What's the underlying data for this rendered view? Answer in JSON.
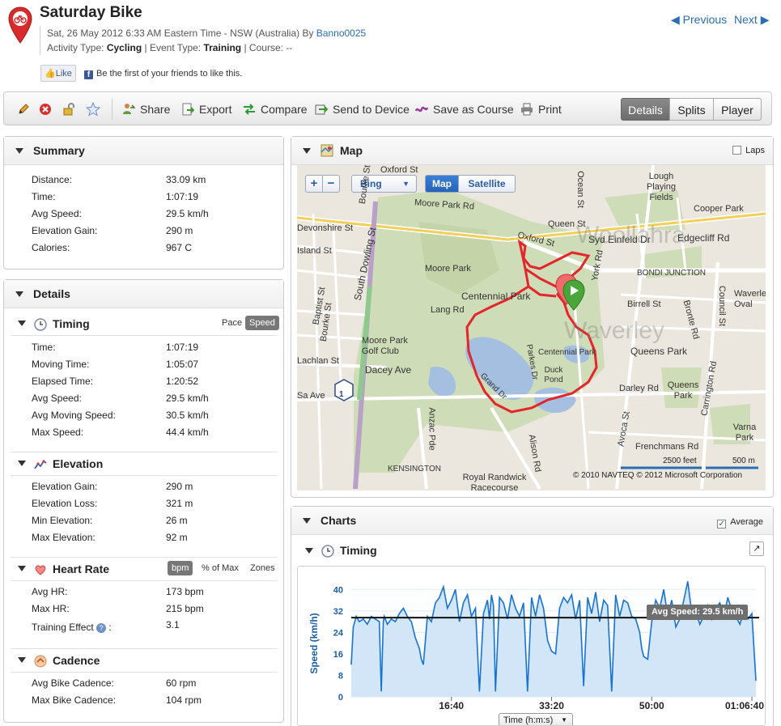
{
  "header": {
    "title": "Saturday Bike",
    "date_line_prefix": "Sat, 26 May 2012 6:33 AM Eastern Time - NSW (Australia) By ",
    "user": "Banno0025",
    "activity_type_label": "Activity Type:",
    "activity_type": "Cycling",
    "event_type_label": "| Event Type:",
    "event_type": "Training",
    "course_label": "| Course:",
    "course": "--",
    "previous": "Previous",
    "next": "Next",
    "like_label": "Like",
    "like_text": "Be the first of your friends to like this."
  },
  "toolbar": {
    "share": "Share",
    "export": "Export",
    "compare": "Compare",
    "send": "Send to Device",
    "save_course": "Save as Course",
    "print": "Print",
    "view_tabs": [
      "Details",
      "Splits",
      "Player"
    ],
    "active_tab": "Details"
  },
  "summary": {
    "title": "Summary",
    "rows": [
      {
        "label": "Distance:",
        "value": "33.09 km"
      },
      {
        "label": "Time:",
        "value": "1:07:19"
      },
      {
        "label": "Avg Speed:",
        "value": "29.5 km/h"
      },
      {
        "label": "Elevation Gain:",
        "value": "290 m"
      },
      {
        "label": "Calories:",
        "value": "967 C"
      }
    ]
  },
  "details": {
    "title": "Details",
    "timing": {
      "title": "Timing",
      "pace": "Pace",
      "speed": "Speed",
      "rows": [
        {
          "label": "Time:",
          "value": "1:07:19"
        },
        {
          "label": "Moving Time:",
          "value": "1:05:07"
        },
        {
          "label": "Elapsed Time:",
          "value": "1:20:52"
        },
        {
          "label": "Avg Speed:",
          "value": "29.5 km/h"
        },
        {
          "label": "Avg Moving Speed:",
          "value": "30.5 km/h"
        },
        {
          "label": "Max Speed:",
          "value": "44.4 km/h"
        }
      ]
    },
    "elevation": {
      "title": "Elevation",
      "rows": [
        {
          "label": "Elevation Gain:",
          "value": "290 m"
        },
        {
          "label": "Elevation Loss:",
          "value": "321 m"
        },
        {
          "label": "Min Elevation:",
          "value": "26 m"
        },
        {
          "label": "Max Elevation:",
          "value": "92 m"
        }
      ]
    },
    "heart_rate": {
      "title": "Heart Rate",
      "bpm": "bpm",
      "pct_max": "% of Max",
      "zones": "Zones",
      "rows": [
        {
          "label": "Avg HR:",
          "value": "173 bpm"
        },
        {
          "label": "Max HR:",
          "value": "215 bpm"
        },
        {
          "label": "Training Effect",
          "value": "3.1"
        }
      ],
      "colon": ":"
    },
    "cadence": {
      "title": "Cadence",
      "rows": [
        {
          "label": "Avg Bike Cadence:",
          "value": "60 rpm"
        },
        {
          "label": "Max Bike Cadence:",
          "value": "104 rpm"
        }
      ]
    }
  },
  "map": {
    "title": "Map",
    "laps": "Laps",
    "zoom_in": "+",
    "zoom_out": "−",
    "provider": "Bing",
    "map_btn": "Map",
    "satellite_btn": "Satellite",
    "scale_ft": "2500 feet",
    "scale_m": "500 m",
    "copyright": "© 2010 NAVTEQ   © 2012 Microsoft Corporation",
    "route_marker": "1",
    "labels": [
      "Moore Park Rd",
      "Queen St",
      "Oxford St",
      "Syd Einfeld Dr",
      "Edgecliff Rd",
      "Cooper Park",
      "Lough Playing Fields",
      "Ocean St",
      "Moore Park",
      "Centennial Park",
      "BONDI JUNCTION",
      "Waverley Oval",
      "Lang Rd",
      "Birrell St",
      "Bronte Rd",
      "Council St",
      "Moore Park Golf Club",
      "Dacey Ave",
      "Centennial Park",
      "Queens Park",
      "Duck Pond",
      "Parkes Dr",
      "Grand Dr",
      "Darley Rd",
      "Queens Park",
      "Carrington Rd",
      "Lachlan St",
      "Anzac Pde",
      "Avoca St",
      "Varna Park",
      "Frenchmans Rd",
      "KENSINGTON",
      "Alison Rd",
      "Royal Randwick Racecourse",
      "South Dowling St",
      "Baptist St",
      "Bourke St",
      "Devonshire St",
      "Island St",
      "York Rd",
      "Woollahra",
      "Waverley",
      "Oxford St",
      "Bourke St",
      "Sa Ave"
    ]
  },
  "charts": {
    "title": "Charts",
    "average": "Average",
    "timing_title": "Timing",
    "y_label": "Speed (km/h)",
    "x_selector": "Time (h:m:s)",
    "avg_tooltip": "Avg Speed: 29.5 km/h"
  },
  "chart_data": {
    "type": "area",
    "title": "Timing",
    "ylabel": "Speed (km/h)",
    "xlabel": "Time (h:m:s)",
    "ylim": [
      0,
      44
    ],
    "y_ticks": [
      0,
      8,
      16,
      24,
      32,
      40
    ],
    "x_ticks": [
      "16:40",
      "33:20",
      "50:00",
      "01:06:40"
    ],
    "x_tick_seconds": [
      1000,
      2000,
      3000,
      4000
    ],
    "xlim_seconds": [
      0,
      4040
    ],
    "average": 29.5,
    "series": [
      {
        "name": "Speed",
        "x_seconds": [
          0,
          20,
          50,
          80,
          120,
          160,
          200,
          240,
          280,
          300,
          320,
          330,
          340,
          360,
          400,
          440,
          480,
          520,
          560,
          600,
          640,
          680,
          700,
          720,
          760,
          800,
          840,
          880,
          920,
          960,
          1000,
          1040,
          1080,
          1120,
          1160,
          1200,
          1240,
          1280,
          1320,
          1360,
          1380,
          1400,
          1420,
          1440,
          1480,
          1520,
          1560,
          1600,
          1640,
          1680,
          1720,
          1760,
          1800,
          1840,
          1880,
          1920,
          1960,
          2000,
          2040,
          2080,
          2120,
          2160,
          2200,
          2240,
          2280,
          2320,
          2360,
          2400,
          2440,
          2480,
          2520,
          2560,
          2600,
          2640,
          2680,
          2720,
          2760,
          2800,
          2840,
          2880,
          2900,
          2920,
          2960,
          3000,
          3040,
          3080,
          3120,
          3160,
          3200,
          3240,
          3280,
          3320,
          3360,
          3400,
          3440,
          3480,
          3520,
          3560,
          3600,
          3640,
          3680,
          3720,
          3760,
          3800,
          3840,
          3880,
          3920,
          3960,
          4000,
          4040
        ],
        "values": [
          12,
          26,
          30,
          28,
          29,
          27,
          30,
          29,
          28,
          2,
          28,
          30,
          29,
          27,
          29,
          28,
          31,
          33,
          30,
          28,
          22,
          18,
          14,
          12,
          30,
          28,
          35,
          37,
          41,
          33,
          36,
          40,
          28,
          35,
          38,
          30,
          33,
          2,
          31,
          36,
          29,
          38,
          34,
          2,
          37,
          35,
          29,
          38,
          33,
          30,
          35,
          2,
          37,
          30,
          38,
          33,
          21,
          17,
          16,
          33,
          37,
          35,
          38,
          29,
          36,
          4,
          37,
          31,
          39,
          28,
          36,
          34,
          2,
          38,
          30,
          36,
          35,
          30,
          29,
          24,
          18,
          15,
          14,
          28,
          36,
          33,
          40,
          30,
          36,
          26,
          29,
          36,
          43,
          31,
          32,
          27,
          30,
          34,
          29,
          33,
          35,
          30,
          37,
          32,
          30,
          27,
          32,
          29,
          31,
          6
        ]
      }
    ]
  },
  "colors": {
    "accent": "#2a6db5",
    "route": "#e3262b",
    "chart_line": "#1673d6",
    "chart_fill": "#d3e6f8"
  }
}
